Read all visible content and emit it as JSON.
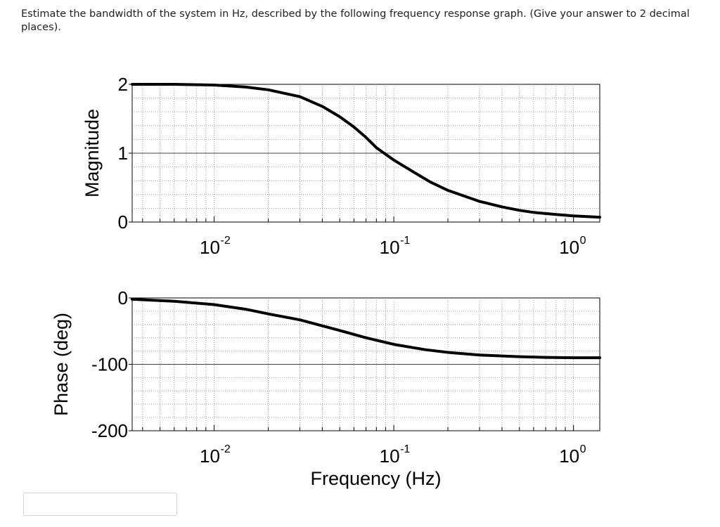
{
  "question": {
    "text": "Estimate the bandwidth of the system in Hz, described by the following frequency response graph. (Give your answer to 2 decimal places)."
  },
  "answer": {
    "value": "",
    "placeholder": ""
  },
  "chart_data": [
    {
      "type": "line",
      "title": "",
      "xlabel": "",
      "ylabel": "Magnitude",
      "xscale": "log",
      "xlim": [
        0.0035,
        1.4
      ],
      "ylim": [
        0,
        2
      ],
      "xticks": [
        0.01,
        0.1,
        1
      ],
      "xtick_labels": [
        {
          "base": "10",
          "exp": "-2"
        },
        {
          "base": "10",
          "exp": "-1"
        },
        {
          "base": "10",
          "exp": "0"
        }
      ],
      "yticks": [
        0,
        1,
        2
      ],
      "ytick_labels": [
        "0",
        "1",
        "2"
      ],
      "grid": "dotted",
      "series": [
        {
          "x": [
            0.0035,
            0.006,
            0.01,
            0.015,
            0.02,
            0.03,
            0.04,
            0.05,
            0.06,
            0.07,
            0.08,
            0.1,
            0.13,
            0.16,
            0.2,
            0.3,
            0.4,
            0.5,
            0.6,
            0.8,
            1.0,
            1.4
          ],
          "y": [
            2.0,
            2.0,
            1.99,
            1.96,
            1.92,
            1.82,
            1.68,
            1.53,
            1.38,
            1.23,
            1.08,
            0.9,
            0.72,
            0.58,
            0.46,
            0.3,
            0.22,
            0.17,
            0.14,
            0.11,
            0.09,
            0.07
          ]
        }
      ]
    },
    {
      "type": "line",
      "title": "",
      "xlabel": "Frequency (Hz)",
      "ylabel": "Phase (deg)",
      "xscale": "log",
      "xlim": [
        0.0035,
        1.4
      ],
      "ylim": [
        -200,
        0
      ],
      "xticks": [
        0.01,
        0.1,
        1
      ],
      "xtick_labels": [
        {
          "base": "10",
          "exp": "-2"
        },
        {
          "base": "10",
          "exp": "-1"
        },
        {
          "base": "10",
          "exp": "0"
        }
      ],
      "yticks": [
        -200,
        -100,
        0
      ],
      "ytick_labels": [
        "-200",
        "-100",
        "0"
      ],
      "grid": "dotted",
      "series": [
        {
          "x": [
            0.0035,
            0.006,
            0.01,
            0.015,
            0.02,
            0.03,
            0.05,
            0.07,
            0.1,
            0.15,
            0.2,
            0.3,
            0.5,
            0.7,
            1.0,
            1.4
          ],
          "y": [
            -2,
            -5,
            -10,
            -17,
            -24,
            -33,
            -49,
            -60,
            -70,
            -78,
            -82,
            -86,
            -88.5,
            -89.5,
            -90,
            -90
          ]
        }
      ]
    }
  ]
}
